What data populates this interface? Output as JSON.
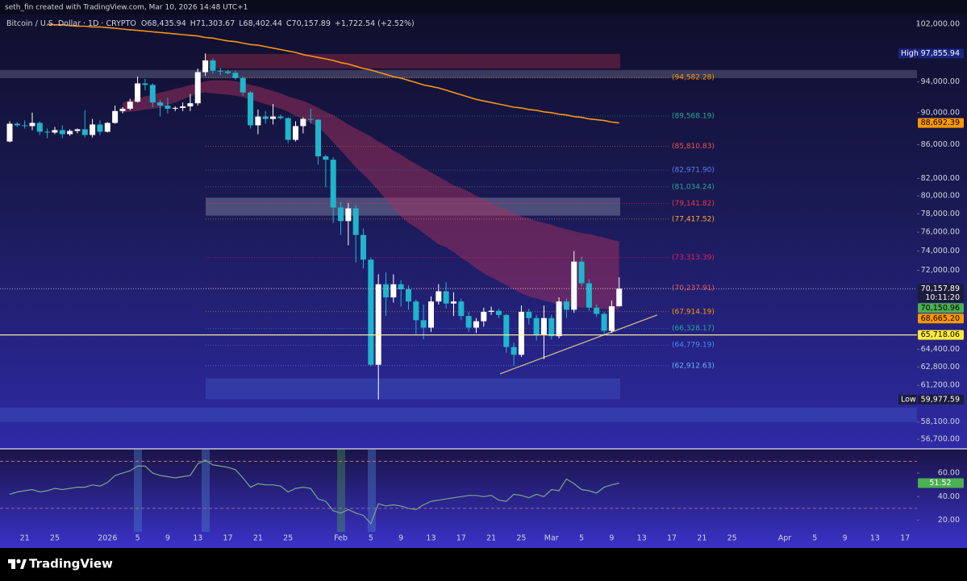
{
  "watermark": "seth_fin created with TradingView.com, Mar 10, 2026 14:48 UTC+1",
  "brand": "TradingView",
  "chart_data": [
    {
      "type": "candlestick",
      "symbol": "Bitcoin / U.S. Dollar · 1D · CRYPTO",
      "header_values": [
        "O68,435.94",
        "H71,303.67",
        "L68,402.44",
        "C70,157.89",
        "+1,722.54 (+2.52%)"
      ],
      "up_color": "#ffffff",
      "down_color": "#1fb5cc",
      "log_scale": true,
      "ylim": [
        56000,
        103400
      ],
      "yticks": [
        {
          "value": 102000,
          "label": "102,000.00"
        },
        {
          "value": 94000,
          "label": "94,000.00"
        },
        {
          "value": 90000,
          "label": "90,000.00"
        },
        {
          "value": 86000,
          "label": "86,000.00"
        },
        {
          "value": 82000,
          "label": "82,000.00"
        },
        {
          "value": 80000,
          "label": "80,000.00"
        },
        {
          "value": 78000,
          "label": "78,000.00"
        },
        {
          "value": 76000,
          "label": "76,000.00"
        },
        {
          "value": 74000,
          "label": "74,000.00"
        },
        {
          "value": 72000,
          "label": "72,000.00"
        },
        {
          "value": 64400,
          "label": "64,400.00"
        },
        {
          "value": 62800,
          "label": "62,800.00"
        },
        {
          "value": 61200,
          "label": "61,200.00"
        },
        {
          "value": 58100,
          "label": "58,100.00"
        },
        {
          "value": 56700,
          "label": "56,700.00"
        }
      ],
      "x_tick_labels": [
        "21",
        "25",
        "2026",
        "5",
        "9",
        "13",
        "17",
        "21",
        "25",
        "Feb",
        "5",
        "9",
        "13",
        "17",
        "21",
        "25",
        "Mar",
        "5",
        "9",
        "13",
        "17",
        "21",
        "25",
        "Apr",
        "5",
        "9",
        "13",
        "17"
      ],
      "candles": [
        [
          86400,
          88900,
          86300,
          88600
        ],
        [
          88600,
          88800,
          88200,
          88400
        ],
        [
          88400,
          89000,
          88000,
          88300
        ],
        [
          88300,
          90000,
          87800,
          88700
        ],
        [
          88700,
          88900,
          87200,
          87600
        ],
        [
          87600,
          88000,
          86800,
          87500
        ],
        [
          87500,
          88200,
          87300,
          87800
        ],
        [
          87800,
          88400,
          86800,
          87300
        ],
        [
          87300,
          87900,
          87100,
          87700
        ],
        [
          87700,
          88000,
          87400,
          87900
        ],
        [
          87900,
          90300,
          86900,
          87200
        ],
        [
          87200,
          89200,
          86900,
          88500
        ],
        [
          88500,
          89000,
          87200,
          87600
        ],
        [
          87600,
          88800,
          87500,
          88700
        ],
        [
          88700,
          90900,
          88600,
          90200
        ],
        [
          90200,
          90700,
          89900,
          90500
        ],
        [
          90500,
          91800,
          90300,
          91400
        ],
        [
          91400,
          94700,
          91300,
          93800
        ],
        [
          93800,
          94400,
          92900,
          93600
        ],
        [
          93600,
          93800,
          90700,
          91300
        ],
        [
          91300,
          91600,
          89500,
          90900
        ],
        [
          90900,
          91900,
          89900,
          90500
        ],
        [
          90500,
          90800,
          90200,
          90600
        ],
        [
          90600,
          91300,
          90200,
          90800
        ],
        [
          90800,
          92400,
          90200,
          91200
        ],
        [
          91200,
          95800,
          90900,
          95300
        ],
        [
          95300,
          97855.94,
          94800,
          96900
        ],
        [
          96900,
          97200,
          95100,
          95500
        ],
        [
          95500,
          95900,
          94900,
          95400
        ],
        [
          95400,
          95600,
          95000,
          95200
        ],
        [
          95200,
          95500,
          94300,
          94500
        ],
        [
          94500,
          94700,
          92200,
          92600
        ],
        [
          92600,
          92800,
          88000,
          88400
        ],
        [
          88400,
          90400,
          87300,
          89500
        ],
        [
          89500,
          90200,
          88600,
          89200
        ],
        [
          89200,
          91100,
          88500,
          89500
        ],
        [
          89500,
          89800,
          89100,
          89300
        ],
        [
          89300,
          89400,
          86200,
          86600
        ],
        [
          86600,
          88900,
          86400,
          88300
        ],
        [
          88300,
          89400,
          87400,
          89200
        ],
        [
          89200,
          90500,
          88600,
          89100
        ],
        [
          89100,
          89200,
          83600,
          84600
        ],
        [
          84600,
          84800,
          81000,
          84200
        ],
        [
          84200,
          84500,
          77000,
          78700
        ],
        [
          78700,
          79300,
          75700,
          77200
        ],
        [
          77200,
          79200,
          74600,
          78600
        ],
        [
          78600,
          79000,
          72800,
          75700
        ],
        [
          75700,
          76400,
          72200,
          73100
        ],
        [
          73100,
          73300,
          62900,
          63000
        ],
        [
          63000,
          71600,
          59977.59,
          70600
        ],
        [
          70600,
          71800,
          67500,
          69300
        ],
        [
          69300,
          71600,
          68800,
          70600
        ],
        [
          70600,
          71000,
          68400,
          70100
        ],
        [
          70100,
          70500,
          68100,
          68900
        ],
        [
          68900,
          69100,
          65800,
          67100
        ],
        [
          67100,
          68600,
          65300,
          66400
        ],
        [
          66400,
          69400,
          66000,
          68900
        ],
        [
          68900,
          70600,
          68600,
          69900
        ],
        [
          69900,
          70800,
          68200,
          68700
        ],
        [
          68700,
          69800,
          67500,
          68900
        ],
        [
          68900,
          69200,
          67100,
          67500
        ],
        [
          67500,
          67900,
          66000,
          66400
        ],
        [
          66400,
          67300,
          65900,
          67000
        ],
        [
          67000,
          68300,
          66500,
          67900
        ],
        [
          67900,
          68400,
          67600,
          68000
        ],
        [
          68000,
          68200,
          67300,
          67600
        ],
        [
          67600,
          67700,
          64100,
          64600
        ],
        [
          64600,
          65000,
          62900,
          63900
        ],
        [
          63900,
          68500,
          63700,
          67900
        ],
        [
          67900,
          68200,
          66700,
          67300
        ],
        [
          67300,
          67600,
          65200,
          65700
        ],
        [
          65700,
          68500,
          63500,
          67300
        ],
        [
          67300,
          67600,
          65300,
          65600
        ],
        [
          65600,
          69300,
          65400,
          68900
        ],
        [
          68900,
          69200,
          67300,
          68100
        ],
        [
          68100,
          74000,
          67800,
          72900
        ],
        [
          72900,
          73400,
          70400,
          70700
        ],
        [
          70700,
          71100,
          68000,
          68300
        ],
        [
          68300,
          68600,
          67400,
          67700
        ],
        [
          67700,
          67900,
          65800,
          66100
        ],
        [
          66100,
          69000,
          65900,
          68436
        ],
        [
          68435.94,
          71303.67,
          68402.44,
          70157.89
        ]
      ],
      "ma": {
        "color": "#f7931a",
        "values": [
          null,
          null,
          null,
          null,
          null,
          102000,
          101900,
          101900,
          101800,
          101700,
          101700,
          101600,
          101600,
          101500,
          101400,
          101300,
          101200,
          101100,
          101000,
          100900,
          100800,
          100700,
          100600,
          100500,
          100400,
          100300,
          100100,
          100000,
          99800,
          99600,
          99500,
          99300,
          99100,
          99000,
          98800,
          98600,
          98400,
          98200,
          98000,
          97700,
          97500,
          97300,
          97100,
          96900,
          96600,
          96400,
          96100,
          95800,
          95600,
          95300,
          95000,
          94700,
          94500,
          94200,
          93900,
          93600,
          93400,
          93200,
          92900,
          92600,
          92300,
          92000,
          91700,
          91500,
          91300,
          91100,
          90900,
          90700,
          90600,
          90400,
          90300,
          90100,
          90000,
          89800,
          89700,
          89500,
          89400,
          89200,
          89100,
          89000,
          88800,
          88692.39
        ]
      },
      "ribbon": {
        "color": "#a3305c",
        "upper": [
          null,
          null,
          null,
          null,
          null,
          null,
          null,
          null,
          null,
          null,
          null,
          null,
          null,
          null,
          null,
          91300,
          91600,
          91800,
          92100,
          92300,
          92600,
          92800,
          93100,
          93300,
          93600,
          93800,
          94100,
          94200,
          94200,
          94200,
          94100,
          93900,
          93600,
          93400,
          93100,
          92800,
          92500,
          92100,
          91800,
          91500,
          91100,
          90600,
          90100,
          89700,
          89100,
          88500,
          88000,
          87500,
          87000,
          86400,
          85900,
          85300,
          84800,
          84200,
          83700,
          83200,
          82700,
          82200,
          81700,
          81200,
          80900,
          80500,
          80000,
          79600,
          79200,
          78800,
          78500,
          78100,
          77700,
          77500,
          77200,
          77000,
          76800,
          76500,
          76300,
          76100,
          75900,
          75800,
          75600,
          75400,
          75200,
          75000
        ],
        "lower": [
          null,
          null,
          null,
          null,
          null,
          null,
          null,
          null,
          null,
          null,
          null,
          null,
          null,
          null,
          null,
          90000,
          90100,
          90200,
          90400,
          90500,
          90600,
          91000,
          91300,
          91700,
          92100,
          92500,
          92600,
          92500,
          92400,
          92300,
          92200,
          92000,
          91700,
          91400,
          91100,
          90800,
          90500,
          90100,
          89600,
          89200,
          88700,
          88200,
          87300,
          86300,
          85300,
          84300,
          83300,
          82500,
          81600,
          80600,
          79600,
          78600,
          77700,
          77000,
          76500,
          75900,
          75300,
          74700,
          74400,
          73900,
          73300,
          72800,
          72200,
          71700,
          71300,
          70900,
          70500,
          70100,
          69700,
          69400,
          69200,
          69000,
          68800,
          68600,
          68400,
          68400,
          68300,
          68300,
          68200,
          68200,
          68100,
          68100
        ]
      },
      "zones": [
        {
          "top": 97800,
          "bottom": 95800,
          "color": "#9a2a46",
          "extended": false
        },
        {
          "top": 95600,
          "bottom": 94500,
          "color": "#6b6b8c",
          "extended": true
        },
        {
          "top": 79800,
          "bottom": 77800,
          "color": "#8c8cab",
          "extended": false
        },
        {
          "top": 61800,
          "bottom": 60000,
          "color": "#3d55c2",
          "extended": false
        },
        {
          "top": 59300,
          "bottom": 58100,
          "color": "#3d55c2",
          "extended": true
        }
      ],
      "levels": [
        {
          "value": 94582.28,
          "label": "(94,582.28)",
          "color": "#ff9800"
        },
        {
          "value": 89568.19,
          "label": "(89,568.19)",
          "color": "#26a69a"
        },
        {
          "value": 85810.83,
          "label": "(85,810.83)",
          "color": "#ef5350"
        },
        {
          "value": 82971.9,
          "label": "(82,971.90)",
          "color": "#5b7cfa"
        },
        {
          "value": 81034.24,
          "label": "(81,034.24)",
          "color": "#26a69a"
        },
        {
          "value": 79141.82,
          "label": "(79,141.82)",
          "color": "#f23645"
        },
        {
          "value": 77417.52,
          "label": "(77,417.52)",
          "color": "#ffa726"
        },
        {
          "value": 73313.39,
          "label": "(73,313.39)",
          "color": "#e91e63"
        },
        {
          "value": 70237.91,
          "label": "(70,237.91)",
          "color": "#ef5350"
        },
        {
          "value": 67914.19,
          "label": "(67,914.19)",
          "color": "#ff9800"
        },
        {
          "value": 66328.17,
          "label": "(66,328.17)",
          "color": "#26a69a"
        },
        {
          "value": 64779.19,
          "label": "(64,779.19)",
          "color": "#448aff"
        },
        {
          "value": 62912.63,
          "label": "(62,912.63)",
          "color": "#64b5f6"
        }
      ],
      "trendline": {
        "from": 62200,
        "to": 67600,
        "color": "#d4c08a"
      },
      "price_labels": [
        {
          "value": 97855.94,
          "label": "97,855.94",
          "tag": "High",
          "bg": "#1a237e",
          "fg": "#ffffff"
        },
        {
          "value": 88692.39,
          "label": "88,692.39",
          "bg": "#ff9800",
          "fg": "#000000"
        },
        {
          "value": 70157.89,
          "label": "70,157.89",
          "sub": "10:11:20",
          "bg": "#1c1c3c",
          "fg": "#ffffff",
          "line": "dotted"
        },
        {
          "value": 70150.96,
          "label": "70,150.96",
          "bg": "#4caf50",
          "fg": "#000000"
        },
        {
          "value": 68665.2,
          "label": "68,665.20",
          "bg": "#ff9800",
          "fg": "#000000"
        },
        {
          "value": 65718.06,
          "label": "65,718.06",
          "bg": "#ffeb3b",
          "fg": "#000000",
          "line": "solid"
        },
        {
          "value": 59977.59,
          "label": "59,977.59",
          "tag": "Low",
          "bg": "#1c1c3c",
          "fg": "#ffffff"
        }
      ]
    },
    {
      "type": "line",
      "color": "#7aa58c",
      "label_bg": "#4caf50",
      "ylim": [
        10,
        80
      ],
      "yticks": [
        {
          "value": 60,
          "label": "60.00"
        },
        {
          "value": 40,
          "label": "40.00"
        },
        {
          "value": 20,
          "label": "20.00"
        }
      ],
      "bands": [
        {
          "value": 70,
          "color": "#e57373"
        },
        {
          "value": 30,
          "color": "#b08090"
        }
      ],
      "values": [
        42,
        44,
        45,
        46,
        44,
        45,
        47,
        46,
        47,
        48,
        48,
        50,
        49,
        52,
        58,
        60,
        62,
        66,
        66,
        60,
        58,
        57,
        56,
        57,
        58,
        68,
        71,
        67,
        66,
        65,
        63,
        56,
        48,
        51,
        50,
        50,
        49,
        44,
        47,
        48,
        47,
        38,
        36,
        28,
        26,
        29,
        26,
        24,
        17,
        34,
        32,
        33,
        32,
        30,
        29,
        33,
        36,
        37,
        38,
        39,
        40,
        41,
        41,
        40,
        41,
        37,
        36,
        42,
        41,
        39,
        42,
        40,
        46,
        45,
        55,
        51,
        46,
        45,
        43,
        48,
        50,
        51.52
      ]
    }
  ]
}
